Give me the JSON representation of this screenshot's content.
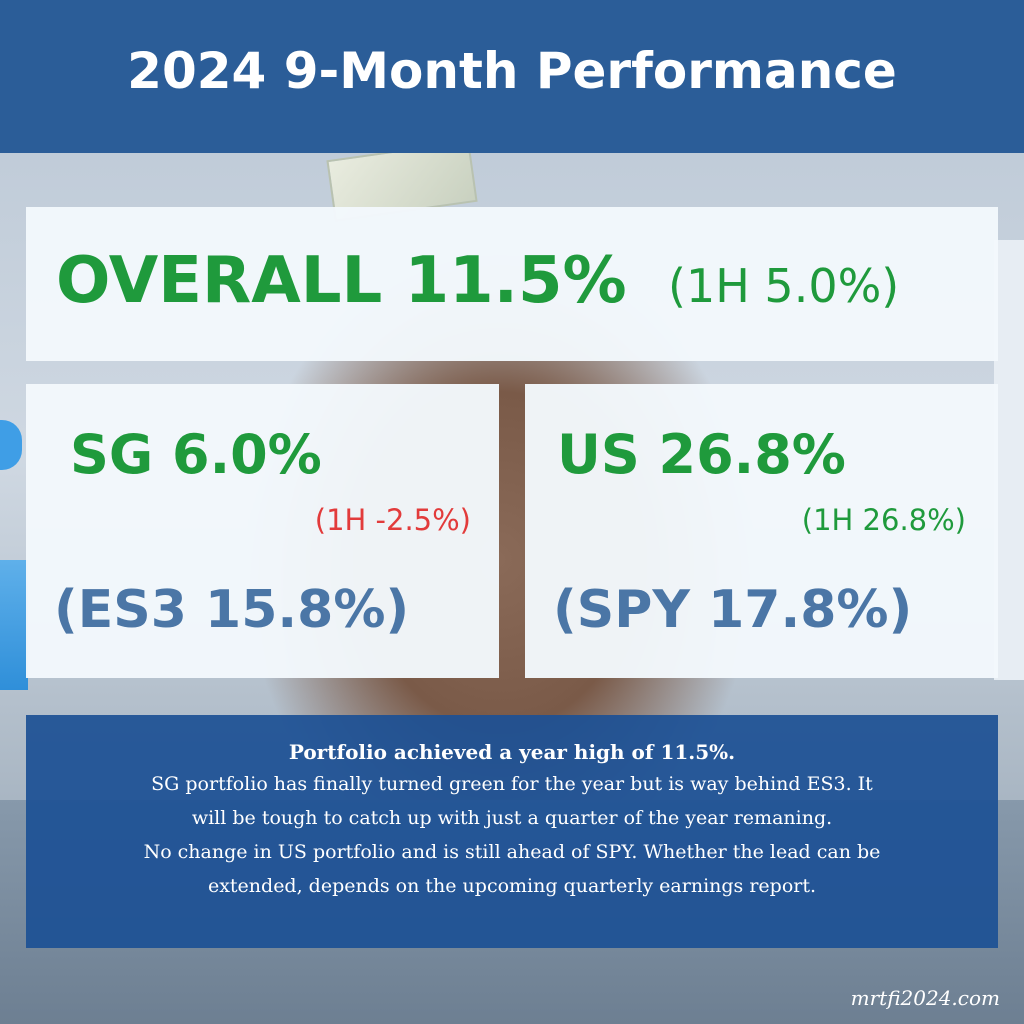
{
  "header": {
    "title": "2024 9-Month Performance"
  },
  "overall": {
    "label": "OVERALL 11.5%",
    "half": "(1H 5.0%)"
  },
  "sg": {
    "label": "SG 6.0%",
    "half": "(1H -2.5%)",
    "benchmark": "(ES3 15.8%)"
  },
  "us": {
    "label": "US 26.8%",
    "half": "(1H 26.8%)",
    "benchmark": "(SPY 17.8%)"
  },
  "summary": {
    "headline": "Portfolio achieved a year high of 11.5%.",
    "lines": [
      "SG portfolio has finally turned green for the year but is way behind ES3. It",
      "will be tough to catch up with just a quarter of the year remaning.",
      "No change in US portfolio and is still ahead of SPY. Whether the lead can be",
      "extended, depends on the upcoming quarterly earnings report."
    ]
  },
  "footer": {
    "site": "mrtfi2024.com"
  },
  "colors": {
    "header_bg": "#2b5d98",
    "positive": "#1f9a3c",
    "negative": "#e23b3b",
    "benchmark": "#4b76a6",
    "summary_bg": "#1d5194"
  }
}
